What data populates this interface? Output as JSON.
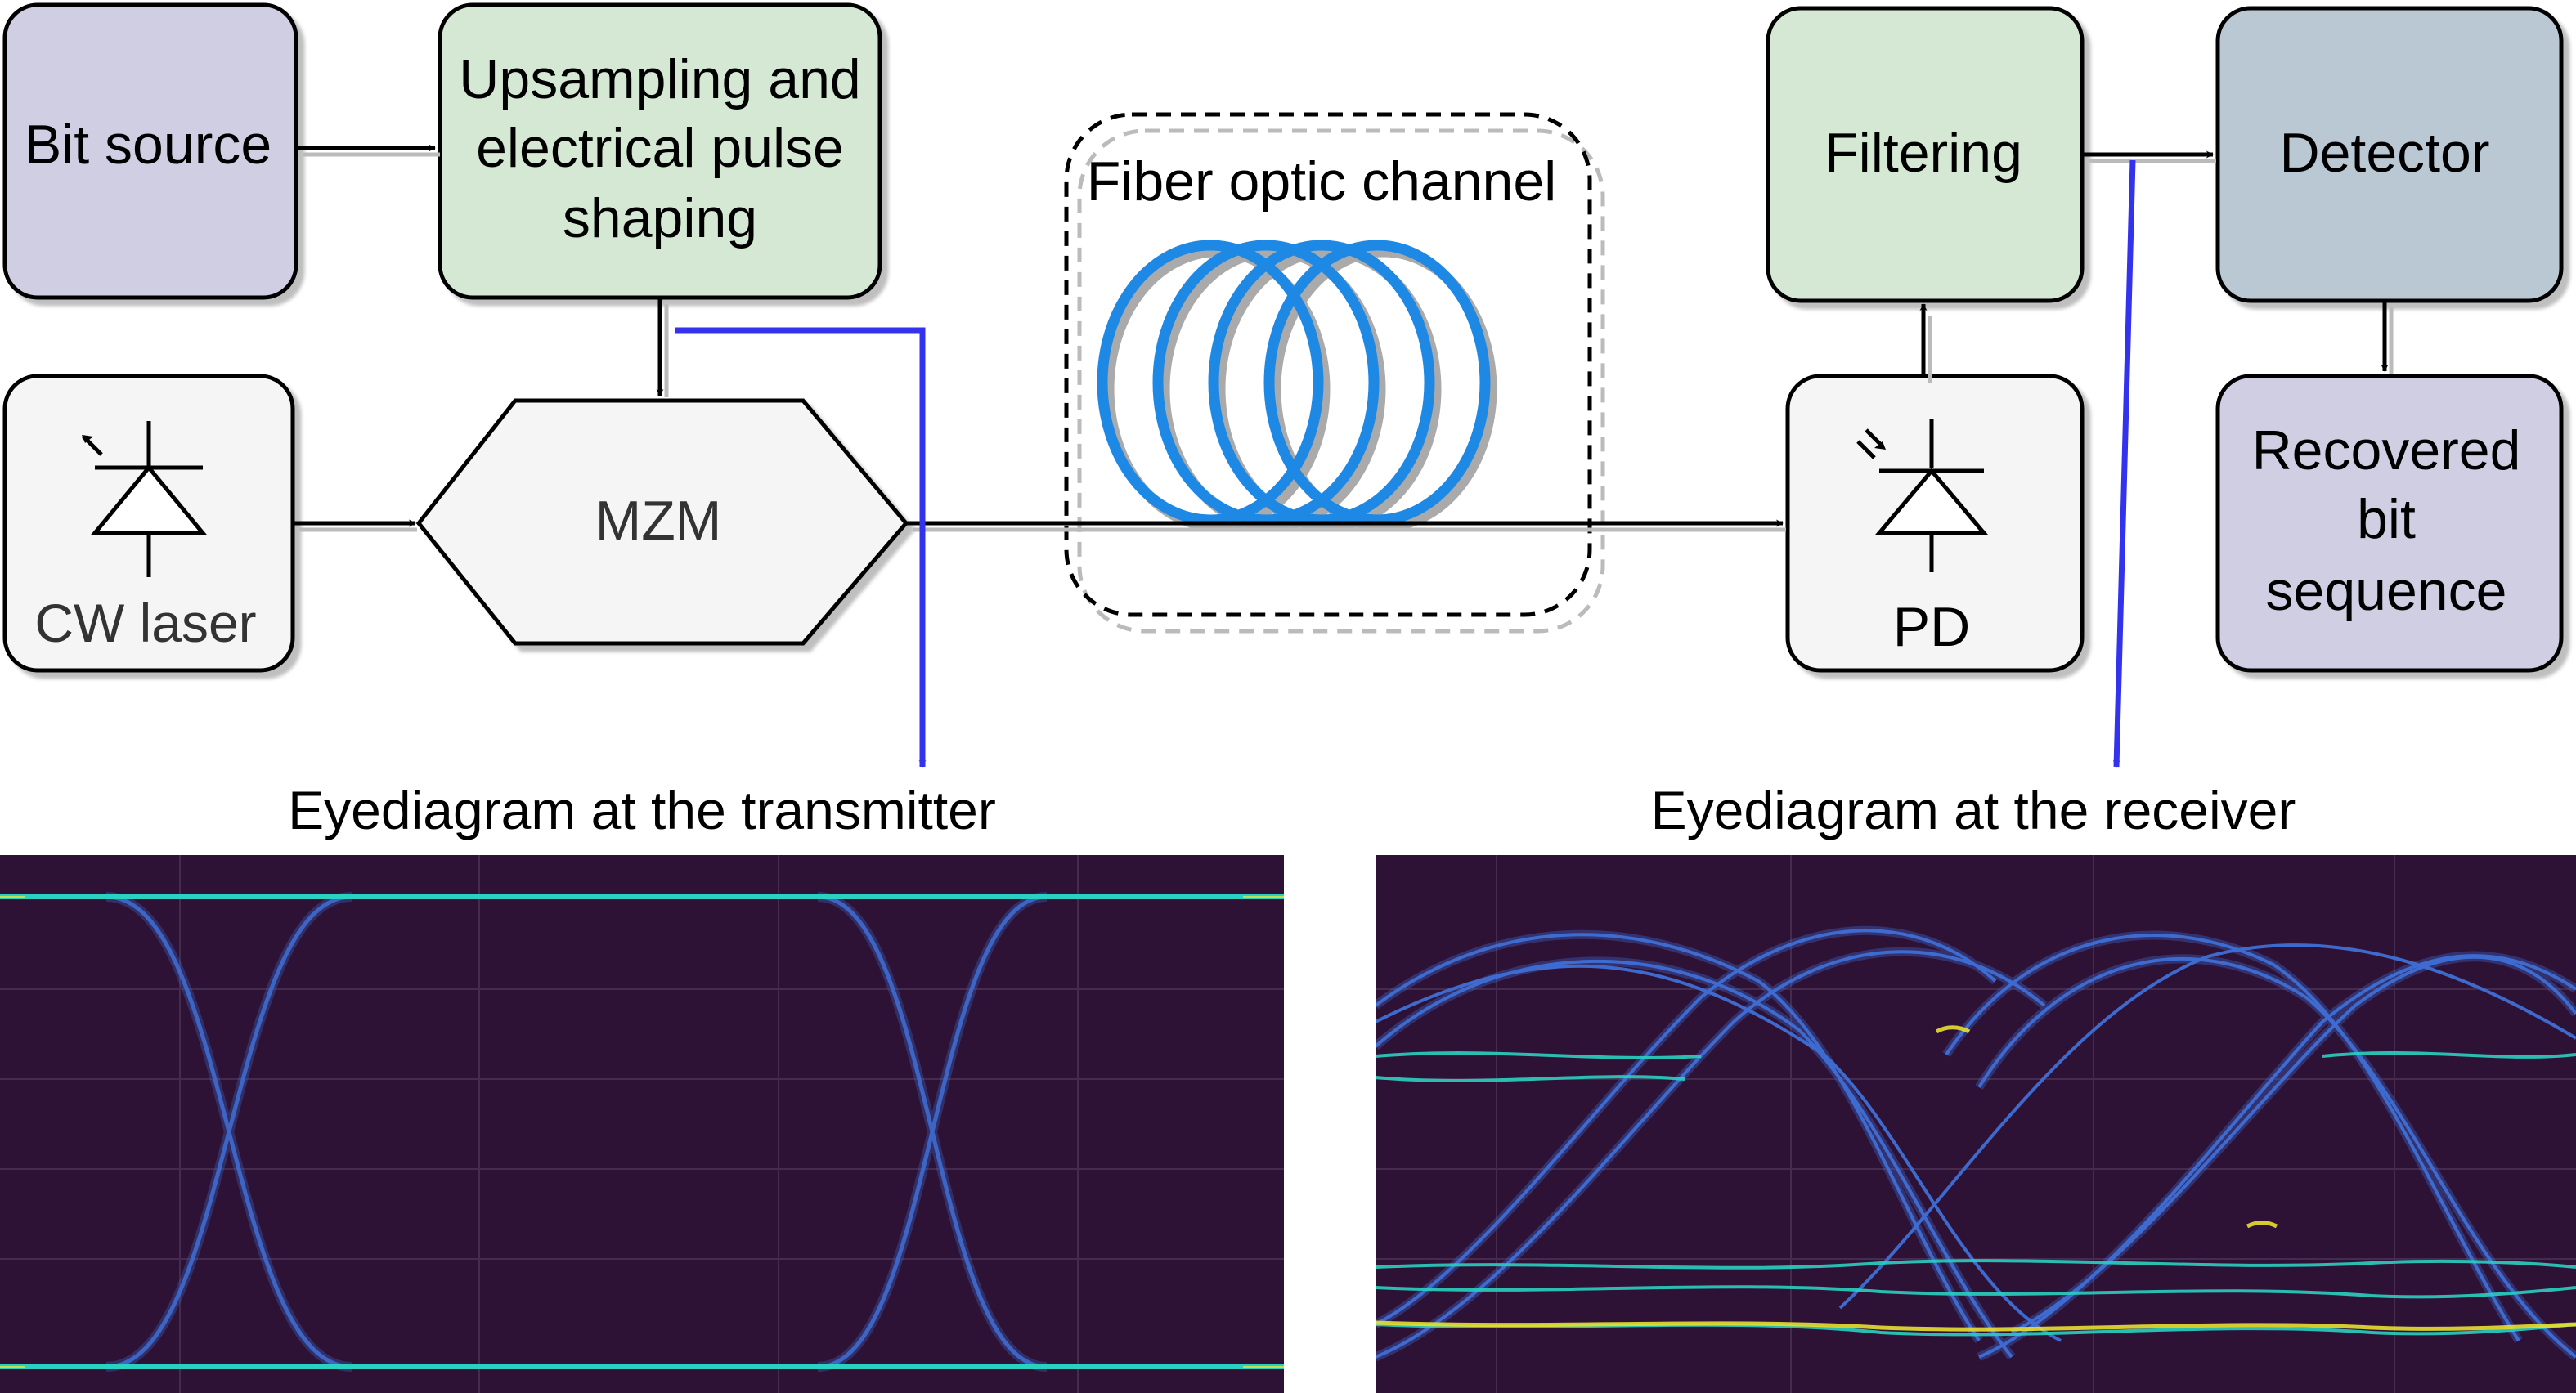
{
  "blocks": {
    "bit_source": {
      "label": "Bit source",
      "fill": "#d0cee2"
    },
    "pulse_shaping": {
      "lines": [
        "Upsampling and",
        "electrical pulse",
        "shaping"
      ],
      "fill": "#d5e8d4"
    },
    "cw_laser": {
      "label": "CW laser",
      "fill": "#f5f5f5"
    },
    "mzm": {
      "label": "MZM",
      "fill": "#f5f5f5"
    },
    "fiber_channel": {
      "label": "Fiber optic channel",
      "coil_color": "#1e88e5"
    },
    "filtering": {
      "label": "Filtering",
      "fill": "#d5e8d4"
    },
    "detector": {
      "label": "Detector",
      "fill": "#bac8d3"
    },
    "photodiode": {
      "label": "PD",
      "fill": "#f5f5f5"
    },
    "recovered": {
      "lines": [
        "Recovered",
        "bit",
        "sequence"
      ],
      "fill": "#d0cee2"
    }
  },
  "probe_color": "#3333ee",
  "eyediagrams": {
    "transmitter": {
      "title": "Eyediagram at the transmitter",
      "background": "#2d1236"
    },
    "receiver": {
      "title": "Eyediagram at the receiver",
      "background": "#2d1236"
    }
  },
  "trace_colors": {
    "low": "#3f6fd6",
    "mid": "#2ad0c0",
    "high": "#e8e030"
  }
}
